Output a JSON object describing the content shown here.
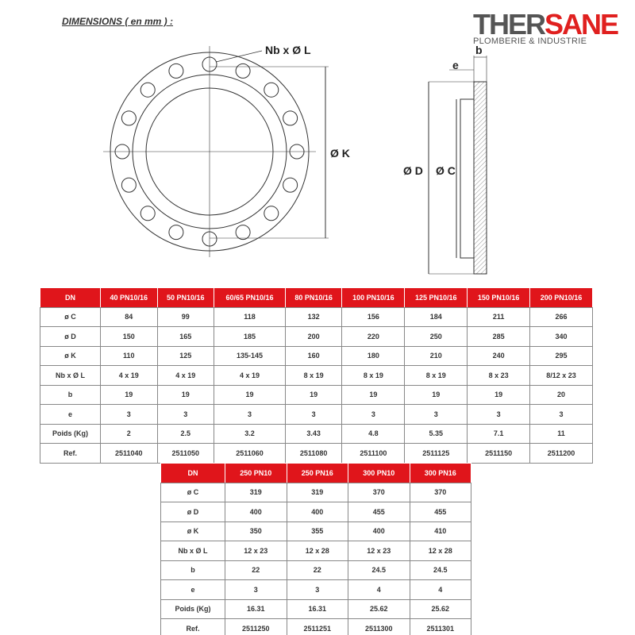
{
  "title": "DIMENSIONS ( en mm ) :",
  "logo": {
    "text_gray": "THER",
    "text_red": "SANE",
    "tagline": "PLOMBERIE & INDUSTRIE",
    "colors": {
      "red": "#e0201f",
      "gray": "#555555"
    }
  },
  "drawing": {
    "holes_label": "Nb x Ø L",
    "k_label": "Ø K",
    "d_label": "Ø D",
    "c_label": "Ø C",
    "e_label": "e",
    "b_label": "b"
  },
  "table1": {
    "headers": [
      "DN",
      "40 PN10/16",
      "50 PN10/16",
      "60/65 PN10/16",
      "80 PN10/16",
      "100 PN10/16",
      "125 PN10/16",
      "150 PN10/16",
      "200 PN10/16"
    ],
    "rows": [
      [
        "ø C",
        "84",
        "99",
        "118",
        "132",
        "156",
        "184",
        "211",
        "266"
      ],
      [
        "ø D",
        "150",
        "165",
        "185",
        "200",
        "220",
        "250",
        "285",
        "340"
      ],
      [
        "ø K",
        "110",
        "125",
        "135-145",
        "160",
        "180",
        "210",
        "240",
        "295"
      ],
      [
        "Nb x  Ø L",
        "4 x 19",
        "4 x 19",
        "4 x 19",
        "8 x 19",
        "8 x 19",
        "8 x 19",
        "8 x 23",
        "8/12 x 23"
      ],
      [
        "b",
        "19",
        "19",
        "19",
        "19",
        "19",
        "19",
        "19",
        "20"
      ],
      [
        "e",
        "3",
        "3",
        "3",
        "3",
        "3",
        "3",
        "3",
        "3"
      ],
      [
        "Poids (Kg)",
        "2",
        "2.5",
        "3.2",
        "3.43",
        "4.8",
        "5.35",
        "7.1",
        "11"
      ],
      [
        "Ref.",
        "2511040",
        "2511050",
        "2511060",
        "2511080",
        "2511100",
        "2511125",
        "2511150",
        "2511200"
      ]
    ]
  },
  "table2": {
    "headers": [
      "DN",
      "250 PN10",
      "250 PN16",
      "300 PN10",
      "300 PN16"
    ],
    "rows": [
      [
        "ø C",
        "319",
        "319",
        "370",
        "370"
      ],
      [
        "ø D",
        "400",
        "400",
        "455",
        "455"
      ],
      [
        "ø K",
        "350",
        "355",
        "400",
        "410"
      ],
      [
        "Nb x  Ø L",
        "12 x 23",
        "12 x 28",
        "12 x 23",
        "12 x 28"
      ],
      [
        "b",
        "22",
        "22",
        "24.5",
        "24.5"
      ],
      [
        "e",
        "3",
        "3",
        "4",
        "4"
      ],
      [
        "Poids (Kg)",
        "16.31",
        "16.31",
        "25.62",
        "25.62"
      ],
      [
        "Ref.",
        "2511250",
        "2511251",
        "2511300",
        "2511301"
      ]
    ]
  }
}
